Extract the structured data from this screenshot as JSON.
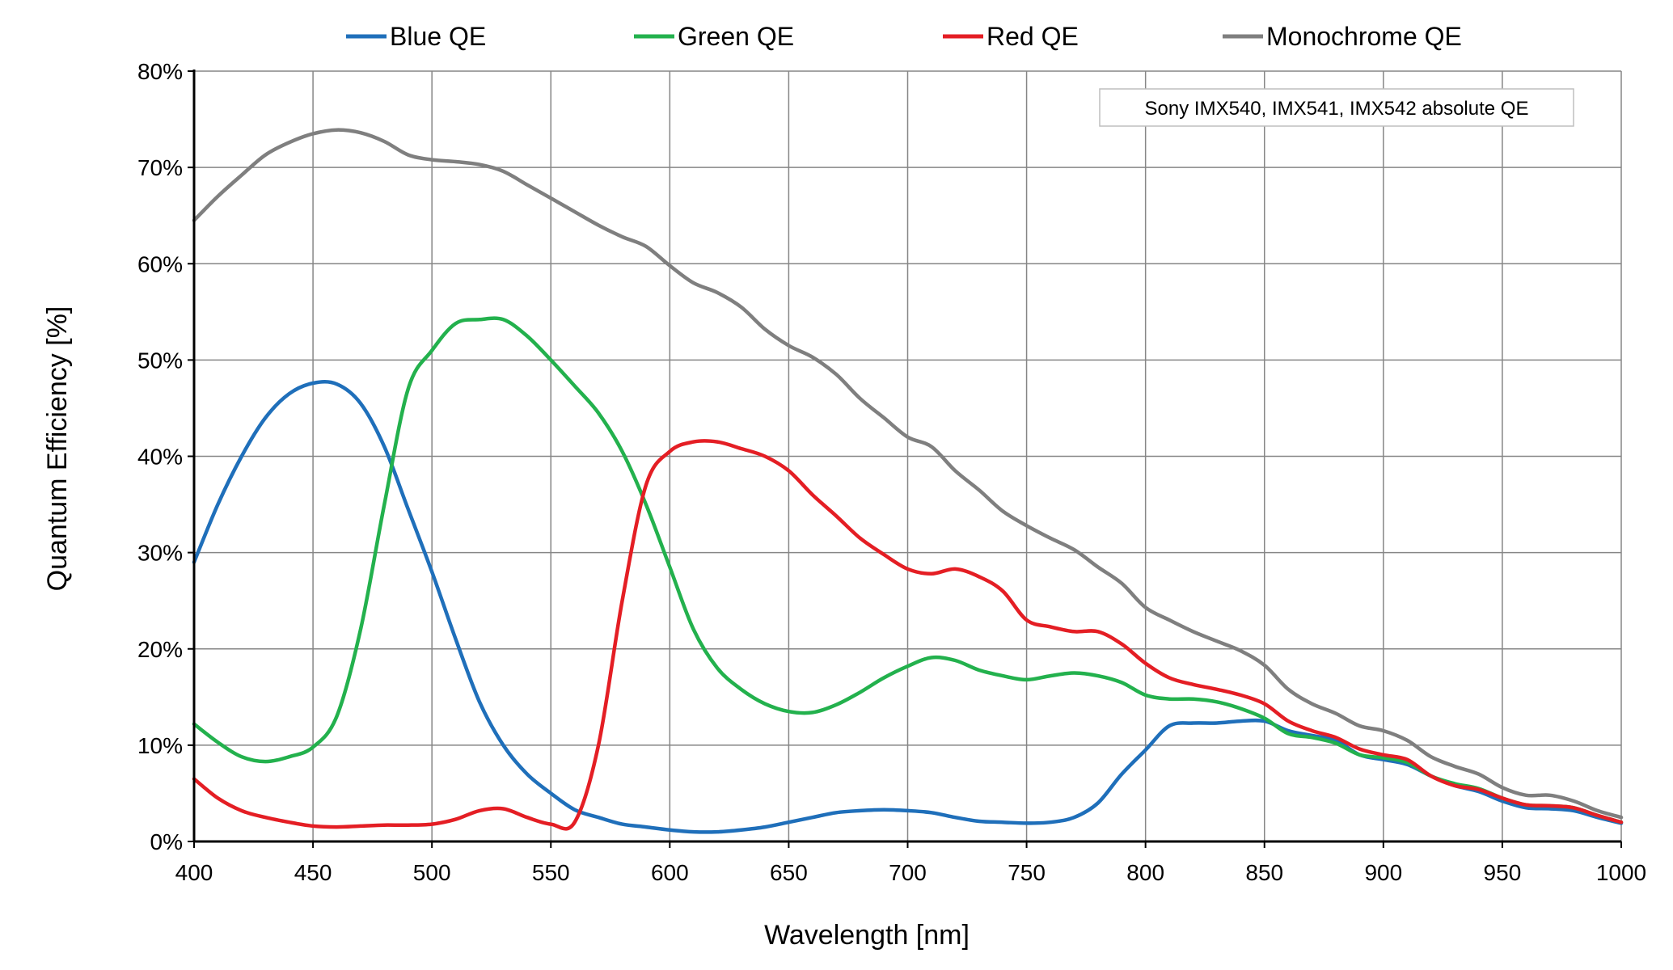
{
  "chart_data": {
    "type": "line",
    "xlabel": "Wavelength [nm]",
    "ylabel": "Quantum Efficiency [%]",
    "xlim": [
      400,
      1000
    ],
    "ylim": [
      0,
      80
    ],
    "x_ticks": [
      "400",
      "450",
      "500",
      "550",
      "600",
      "650",
      "700",
      "750",
      "800",
      "850",
      "900",
      "950",
      "1000"
    ],
    "y_ticks": [
      "0%",
      "10%",
      "20%",
      "30%",
      "40%",
      "50%",
      "60%",
      "70%",
      "80%"
    ],
    "grid": true,
    "legend_position": "top",
    "annotation": "Sony IMX540, IMX541, IMX542 absolute QE",
    "series": [
      {
        "name": "Blue QE",
        "color": "#1f6fba",
        "points": [
          [
            400,
            29
          ],
          [
            410,
            35
          ],
          [
            420,
            40
          ],
          [
            430,
            44
          ],
          [
            440,
            46.5
          ],
          [
            450,
            47.6
          ],
          [
            460,
            47.5
          ],
          [
            470,
            45.5
          ],
          [
            480,
            41
          ],
          [
            490,
            34.5
          ],
          [
            500,
            28
          ],
          [
            510,
            21
          ],
          [
            520,
            14.5
          ],
          [
            530,
            10
          ],
          [
            540,
            7
          ],
          [
            550,
            5
          ],
          [
            560,
            3.3
          ],
          [
            570,
            2.5
          ],
          [
            580,
            1.8
          ],
          [
            590,
            1.5
          ],
          [
            600,
            1.2
          ],
          [
            610,
            1.0
          ],
          [
            620,
            1.0
          ],
          [
            630,
            1.2
          ],
          [
            640,
            1.5
          ],
          [
            650,
            2.0
          ],
          [
            660,
            2.5
          ],
          [
            670,
            3.0
          ],
          [
            680,
            3.2
          ],
          [
            690,
            3.3
          ],
          [
            700,
            3.2
          ],
          [
            710,
            3.0
          ],
          [
            720,
            2.5
          ],
          [
            730,
            2.1
          ],
          [
            740,
            2.0
          ],
          [
            750,
            1.9
          ],
          [
            760,
            2.0
          ],
          [
            770,
            2.5
          ],
          [
            780,
            4.0
          ],
          [
            790,
            7.0
          ],
          [
            800,
            9.5
          ],
          [
            810,
            12.0
          ],
          [
            820,
            12.3
          ],
          [
            830,
            12.3
          ],
          [
            840,
            12.5
          ],
          [
            850,
            12.5
          ],
          [
            860,
            11.5
          ],
          [
            870,
            11.0
          ],
          [
            880,
            10.5
          ],
          [
            890,
            9.0
          ],
          [
            900,
            8.5
          ],
          [
            910,
            8.0
          ],
          [
            920,
            6.8
          ],
          [
            930,
            5.8
          ],
          [
            940,
            5.2
          ],
          [
            950,
            4.2
          ],
          [
            960,
            3.5
          ],
          [
            970,
            3.4
          ],
          [
            980,
            3.2
          ],
          [
            990,
            2.5
          ],
          [
            1000,
            1.9
          ]
        ]
      },
      {
        "name": "Green QE",
        "color": "#23b14d",
        "points": [
          [
            400,
            12.2
          ],
          [
            410,
            10.3
          ],
          [
            420,
            8.8
          ],
          [
            430,
            8.3
          ],
          [
            440,
            8.8
          ],
          [
            450,
            9.8
          ],
          [
            460,
            13
          ],
          [
            470,
            22
          ],
          [
            480,
            35
          ],
          [
            490,
            47
          ],
          [
            500,
            51
          ],
          [
            510,
            53.8
          ],
          [
            520,
            54.2
          ],
          [
            530,
            54.2
          ],
          [
            540,
            52.5
          ],
          [
            550,
            50
          ],
          [
            560,
            47.3
          ],
          [
            570,
            44.5
          ],
          [
            580,
            40.5
          ],
          [
            590,
            35
          ],
          [
            600,
            28.5
          ],
          [
            610,
            22
          ],
          [
            620,
            18
          ],
          [
            630,
            15.8
          ],
          [
            640,
            14.3
          ],
          [
            650,
            13.5
          ],
          [
            660,
            13.4
          ],
          [
            670,
            14.2
          ],
          [
            680,
            15.5
          ],
          [
            690,
            17
          ],
          [
            700,
            18.2
          ],
          [
            710,
            19.1
          ],
          [
            720,
            18.8
          ],
          [
            730,
            17.8
          ],
          [
            740,
            17.2
          ],
          [
            750,
            16.8
          ],
          [
            760,
            17.2
          ],
          [
            770,
            17.5
          ],
          [
            780,
            17.2
          ],
          [
            790,
            16.5
          ],
          [
            800,
            15.2
          ],
          [
            810,
            14.8
          ],
          [
            820,
            14.8
          ],
          [
            830,
            14.5
          ],
          [
            840,
            13.8
          ],
          [
            850,
            12.8
          ],
          [
            860,
            11.2
          ],
          [
            870,
            10.8
          ],
          [
            880,
            10.2
          ],
          [
            890,
            9.0
          ],
          [
            900,
            8.7
          ],
          [
            910,
            8.2
          ],
          [
            920,
            6.8
          ],
          [
            930,
            6.0
          ],
          [
            940,
            5.5
          ],
          [
            950,
            4.5
          ],
          [
            960,
            3.8
          ],
          [
            970,
            3.7
          ],
          [
            980,
            3.5
          ],
          [
            990,
            2.7
          ],
          [
            1000,
            2.0
          ]
        ]
      },
      {
        "name": "Red QE",
        "color": "#e41e24",
        "points": [
          [
            400,
            6.5
          ],
          [
            410,
            4.5
          ],
          [
            420,
            3.2
          ],
          [
            430,
            2.5
          ],
          [
            440,
            2.0
          ],
          [
            450,
            1.6
          ],
          [
            460,
            1.5
          ],
          [
            470,
            1.6
          ],
          [
            480,
            1.7
          ],
          [
            490,
            1.7
          ],
          [
            500,
            1.8
          ],
          [
            510,
            2.3
          ],
          [
            520,
            3.2
          ],
          [
            530,
            3.4
          ],
          [
            540,
            2.5
          ],
          [
            550,
            1.8
          ],
          [
            560,
            2.0
          ],
          [
            570,
            10
          ],
          [
            580,
            25
          ],
          [
            590,
            37
          ],
          [
            600,
            40.5
          ],
          [
            610,
            41.5
          ],
          [
            620,
            41.5
          ],
          [
            630,
            40.8
          ],
          [
            640,
            40
          ],
          [
            650,
            38.5
          ],
          [
            660,
            36
          ],
          [
            670,
            33.8
          ],
          [
            680,
            31.5
          ],
          [
            690,
            29.8
          ],
          [
            700,
            28.3
          ],
          [
            710,
            27.8
          ],
          [
            720,
            28.3
          ],
          [
            730,
            27.5
          ],
          [
            740,
            26
          ],
          [
            750,
            23
          ],
          [
            760,
            22.3
          ],
          [
            770,
            21.8
          ],
          [
            780,
            21.8
          ],
          [
            790,
            20.5
          ],
          [
            800,
            18.5
          ],
          [
            810,
            17
          ],
          [
            820,
            16.3
          ],
          [
            830,
            15.8
          ],
          [
            840,
            15.2
          ],
          [
            850,
            14.3
          ],
          [
            860,
            12.5
          ],
          [
            870,
            11.5
          ],
          [
            880,
            10.8
          ],
          [
            890,
            9.6
          ],
          [
            900,
            9.0
          ],
          [
            910,
            8.5
          ],
          [
            920,
            6.8
          ],
          [
            930,
            5.8
          ],
          [
            940,
            5.4
          ],
          [
            950,
            4.5
          ],
          [
            960,
            3.8
          ],
          [
            970,
            3.7
          ],
          [
            980,
            3.5
          ],
          [
            990,
            2.7
          ],
          [
            1000,
            2.0
          ]
        ]
      },
      {
        "name": "Monochrome QE",
        "color": "#7f7f7f",
        "points": [
          [
            400,
            64.5
          ],
          [
            410,
            67
          ],
          [
            420,
            69.2
          ],
          [
            430,
            71.3
          ],
          [
            440,
            72.6
          ],
          [
            450,
            73.5
          ],
          [
            460,
            73.9
          ],
          [
            470,
            73.6
          ],
          [
            480,
            72.7
          ],
          [
            490,
            71.3
          ],
          [
            500,
            70.8
          ],
          [
            510,
            70.6
          ],
          [
            520,
            70.3
          ],
          [
            530,
            69.6
          ],
          [
            540,
            68.2
          ],
          [
            550,
            66.8
          ],
          [
            560,
            65.4
          ],
          [
            570,
            64
          ],
          [
            580,
            62.8
          ],
          [
            590,
            61.8
          ],
          [
            600,
            59.8
          ],
          [
            610,
            58
          ],
          [
            620,
            57
          ],
          [
            630,
            55.5
          ],
          [
            640,
            53.2
          ],
          [
            650,
            51.5
          ],
          [
            660,
            50.3
          ],
          [
            670,
            48.5
          ],
          [
            680,
            46
          ],
          [
            690,
            44
          ],
          [
            700,
            42
          ],
          [
            710,
            41
          ],
          [
            720,
            38.5
          ],
          [
            730,
            36.5
          ],
          [
            740,
            34.3
          ],
          [
            750,
            32.8
          ],
          [
            760,
            31.5
          ],
          [
            770,
            30.3
          ],
          [
            780,
            28.5
          ],
          [
            790,
            26.8
          ],
          [
            800,
            24.3
          ],
          [
            810,
            23
          ],
          [
            820,
            21.8
          ],
          [
            830,
            20.8
          ],
          [
            840,
            19.8
          ],
          [
            850,
            18.3
          ],
          [
            860,
            15.8
          ],
          [
            870,
            14.3
          ],
          [
            880,
            13.3
          ],
          [
            890,
            12
          ],
          [
            900,
            11.5
          ],
          [
            910,
            10.5
          ],
          [
            920,
            8.8
          ],
          [
            930,
            7.8
          ],
          [
            940,
            7.0
          ],
          [
            950,
            5.6
          ],
          [
            960,
            4.8
          ],
          [
            970,
            4.8
          ],
          [
            980,
            4.2
          ],
          [
            990,
            3.2
          ],
          [
            1000,
            2.5
          ]
        ]
      }
    ]
  }
}
